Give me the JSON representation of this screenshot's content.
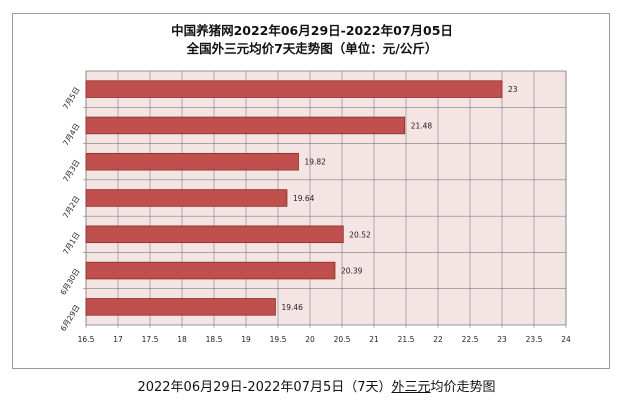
{
  "chart_data": {
    "type": "bar",
    "orientation": "horizontal",
    "title": [
      "中国养猪网2022年06月29日-2022年07月05日",
      "全国外三元均价7天走势图（单位：元/公斤）"
    ],
    "categories": [
      "7月5日",
      "7月4日",
      "7月3日",
      "7月2日",
      "7月1日",
      "6月30日",
      "6月29日"
    ],
    "values": [
      23,
      21.48,
      19.82,
      19.64,
      20.52,
      20.39,
      19.46
    ],
    "value_labels": [
      "23",
      "21.48",
      "19.82",
      "19.64",
      "20.52",
      "20.39",
      "19.46"
    ],
    "xlim": [
      16.5,
      24
    ],
    "xticks": [
      "16.5",
      "17",
      "17.5",
      "18",
      "18.5",
      "19",
      "19.5",
      "20",
      "20.5",
      "21",
      "21.5",
      "22",
      "22.5",
      "23",
      "23.5",
      "24"
    ],
    "grid": true,
    "legend": "none",
    "colors": {
      "bar": "#c0504d",
      "bar_edge": "#8b2d2a",
      "plot_bg": "#f4e4e4",
      "grid": "#7f7f7f"
    }
  },
  "caption": {
    "prefix": "2022年06月29日-2022年07月5日（7天）",
    "link": "外三元",
    "suffix": "均价走势图"
  }
}
